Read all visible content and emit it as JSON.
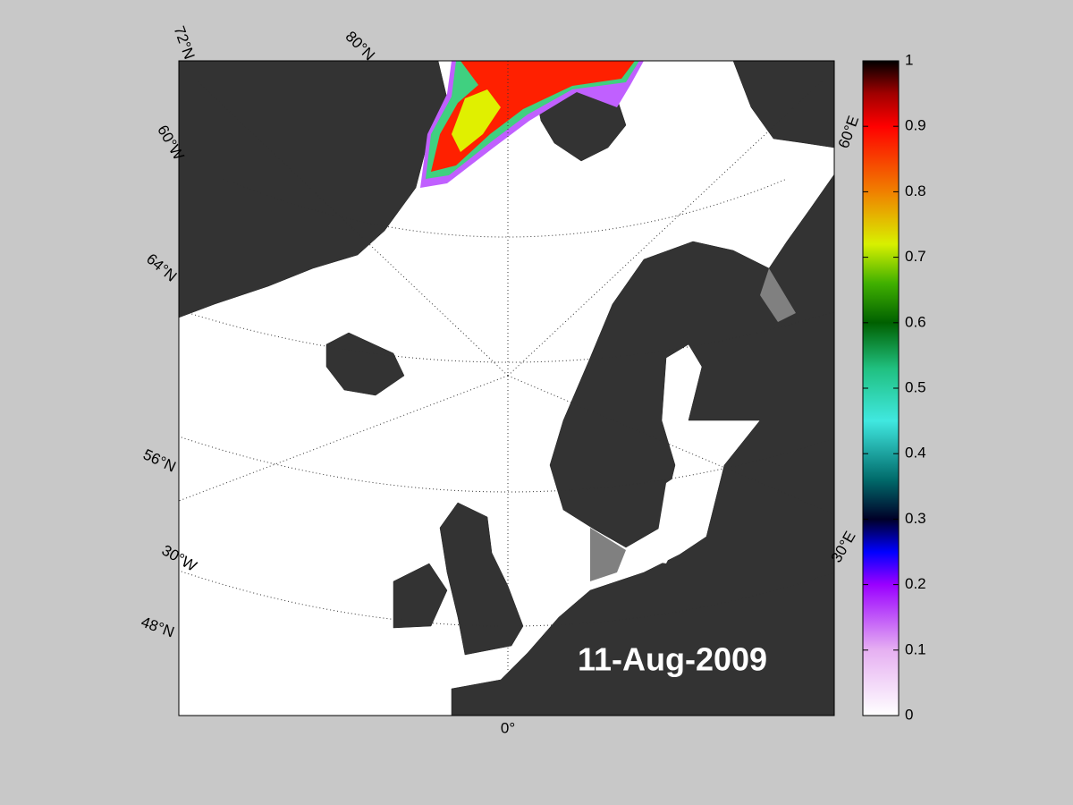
{
  "map": {
    "date": "11-Aug-2009",
    "lat_labels": [
      "72°N",
      "80°N",
      "64°N",
      "56°N",
      "48°N"
    ],
    "lon_labels": [
      "60°W",
      "30°W",
      "0°",
      "30°E",
      "60°E"
    ]
  },
  "colorbar": {
    "lim": [
      0,
      1
    ],
    "ticks": [
      0,
      0.1,
      0.2,
      0.3,
      0.4,
      0.5,
      0.6,
      0.7,
      0.8,
      0.9,
      1
    ]
  }
}
